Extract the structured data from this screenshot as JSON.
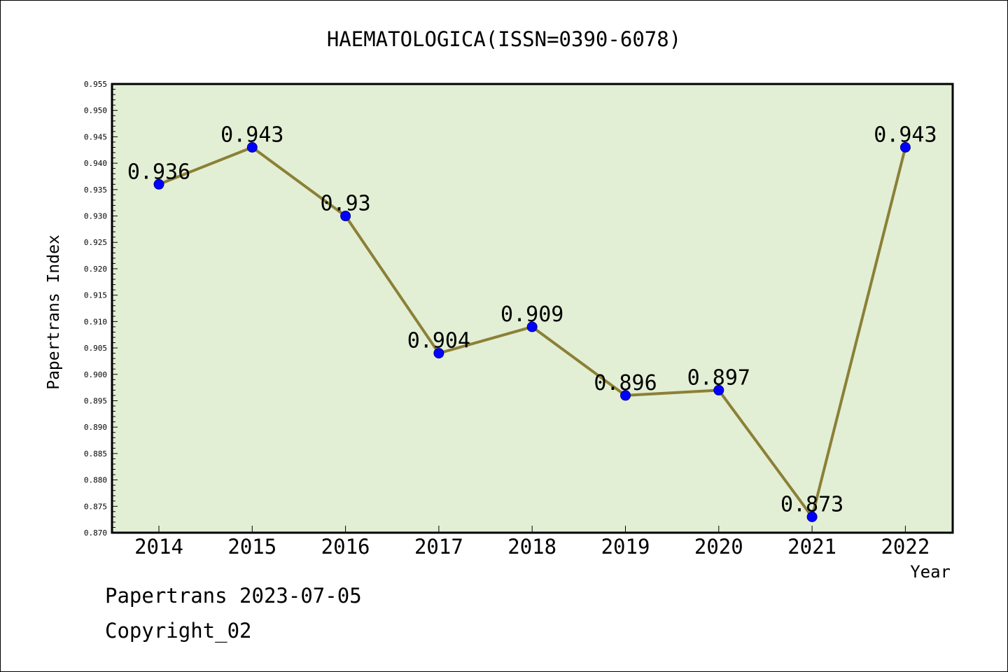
{
  "chart_data": {
    "type": "line",
    "title": "HAEMATOLOGICA(ISSN=0390-6078)",
    "xlabel": "Year",
    "ylabel": "Papertrans Index",
    "categories": [
      "2014",
      "2015",
      "2016",
      "2017",
      "2018",
      "2019",
      "2020",
      "2021",
      "2022"
    ],
    "series": [
      {
        "values": [
          0.936,
          0.943,
          0.93,
          0.904,
          0.909,
          0.896,
          0.897,
          0.873,
          0.943
        ],
        "labels": [
          "0.936",
          "0.943",
          "0.93",
          "0.904",
          "0.909",
          "0.896",
          "0.897",
          "0.873",
          "0.943"
        ]
      }
    ],
    "ylim": [
      0.87,
      0.955
    ],
    "y_ticks": [
      "0.870",
      "0.875",
      "0.880",
      "0.885",
      "0.890",
      "0.895",
      "0.900",
      "0.905",
      "0.910",
      "0.915",
      "0.920",
      "0.925",
      "0.930",
      "0.935",
      "0.940",
      "0.945",
      "0.950",
      "0.955"
    ],
    "grid": false,
    "colors": {
      "plot_background": "#e2efd5",
      "line": "#8b8036",
      "marker": "#0000ff"
    }
  },
  "footer": {
    "source": "Papertrans 2023-07-05",
    "copyright": "Copyright_02"
  }
}
